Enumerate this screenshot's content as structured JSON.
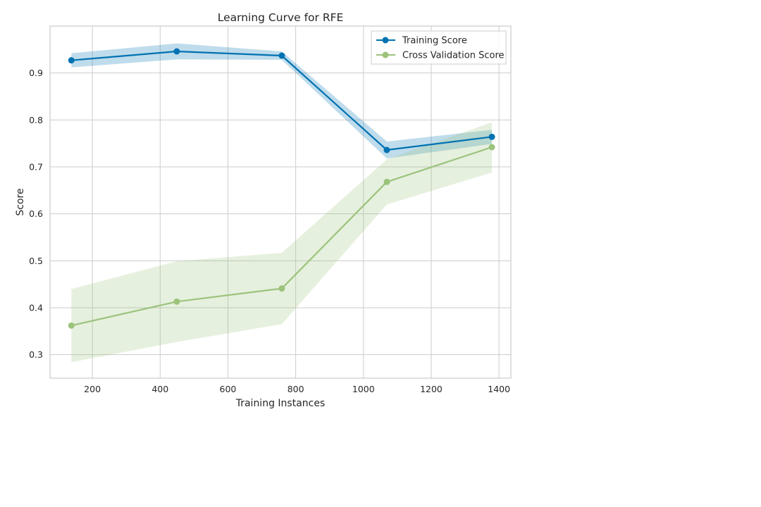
{
  "chart_data": {
    "type": "line",
    "title": "Learning Curve for RFE",
    "xlabel": "Training Instances",
    "ylabel": "Score",
    "xlim": [
      75,
      1435
    ],
    "ylim": [
      0.25,
      1.0
    ],
    "xticks": [
      200,
      400,
      600,
      800,
      1000,
      1200,
      1400
    ],
    "yticks": [
      0.3,
      0.4,
      0.5,
      0.6,
      0.7,
      0.8,
      0.9
    ],
    "grid": true,
    "legend_position": "upper right",
    "x": [
      138,
      449,
      759,
      1069,
      1379
    ],
    "series": [
      {
        "name": "Training Score",
        "color": "#0072b2",
        "values": [
          0.927,
          0.946,
          0.937,
          0.736,
          0.764
        ],
        "band_lower": [
          0.912,
          0.929,
          0.928,
          0.718,
          0.749
        ],
        "band_upper": [
          0.942,
          0.963,
          0.946,
          0.754,
          0.779
        ]
      },
      {
        "name": "Cross Validation Score",
        "color": "#9bc37b",
        "values": [
          0.362,
          0.413,
          0.441,
          0.668,
          0.742
        ],
        "band_lower": [
          0.284,
          0.327,
          0.365,
          0.62,
          0.688
        ],
        "band_upper": [
          0.44,
          0.499,
          0.517,
          0.716,
          0.795
        ]
      }
    ]
  }
}
